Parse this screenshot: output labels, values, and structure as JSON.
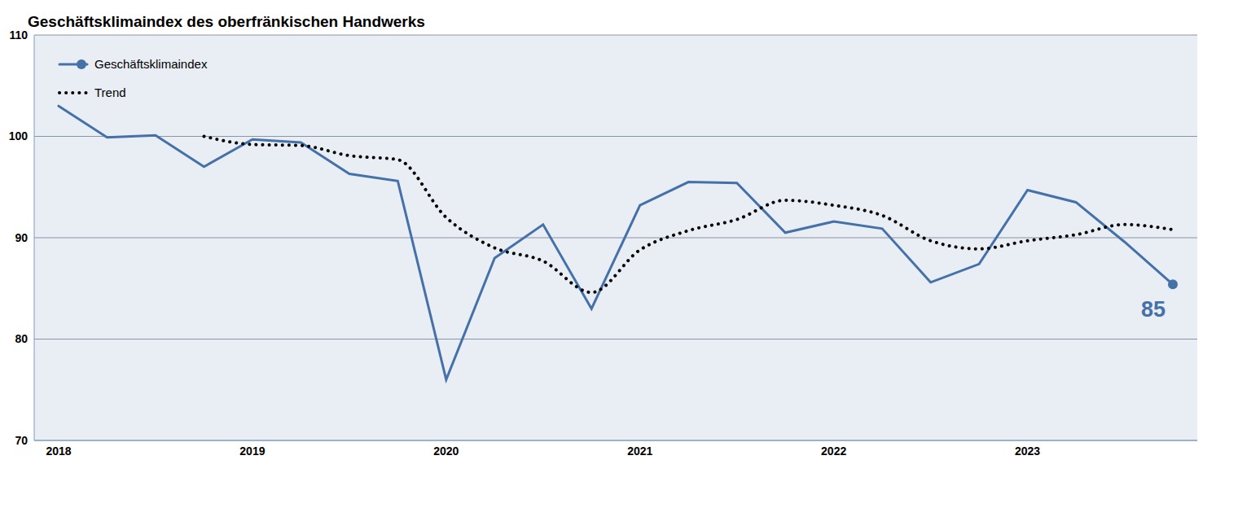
{
  "chart_data": {
    "type": "line",
    "title": "Geschäftsklimaindex des oberfränkischen Handwerks",
    "categories": [
      "2018",
      null,
      null,
      null,
      "2019",
      null,
      null,
      null,
      "2020",
      null,
      null,
      null,
      "2021",
      null,
      null,
      null,
      "2022",
      null,
      null,
      null,
      "2023",
      null,
      null,
      null
    ],
    "series": [
      {
        "name": "Geschäftsklimaindex",
        "color": "#4571a9",
        "marker": "last",
        "line_style": "solid",
        "values": [
          103.0,
          99.9,
          100.1,
          97.0,
          99.7,
          99.4,
          96.3,
          95.6,
          76.0,
          88.0,
          91.3,
          83.0,
          93.2,
          95.5,
          95.4,
          90.5,
          91.6,
          90.9,
          85.6,
          87.4,
          94.7,
          93.5,
          89.6,
          85.4
        ],
        "value_labels": [
          null,
          null,
          null,
          null,
          null,
          null,
          null,
          null,
          null,
          null,
          null,
          null,
          null,
          null,
          null,
          null,
          null,
          null,
          null,
          null,
          null,
          null,
          null,
          "85"
        ]
      },
      {
        "name": "Trend",
        "color": "#000000",
        "line_style": "dotted",
        "values": [
          null,
          null,
          null,
          100.0,
          99.2,
          99.1,
          98.1,
          97.7,
          92.0,
          89.0,
          87.7,
          84.6,
          88.8,
          90.7,
          91.8,
          93.7,
          93.2,
          92.2,
          89.7,
          88.9,
          89.7,
          90.3,
          91.3,
          90.8
        ]
      }
    ],
    "ylim": [
      70,
      110
    ],
    "yticks": [
      70,
      80,
      90,
      100,
      110
    ],
    "grid": true,
    "legend": "upper left"
  }
}
